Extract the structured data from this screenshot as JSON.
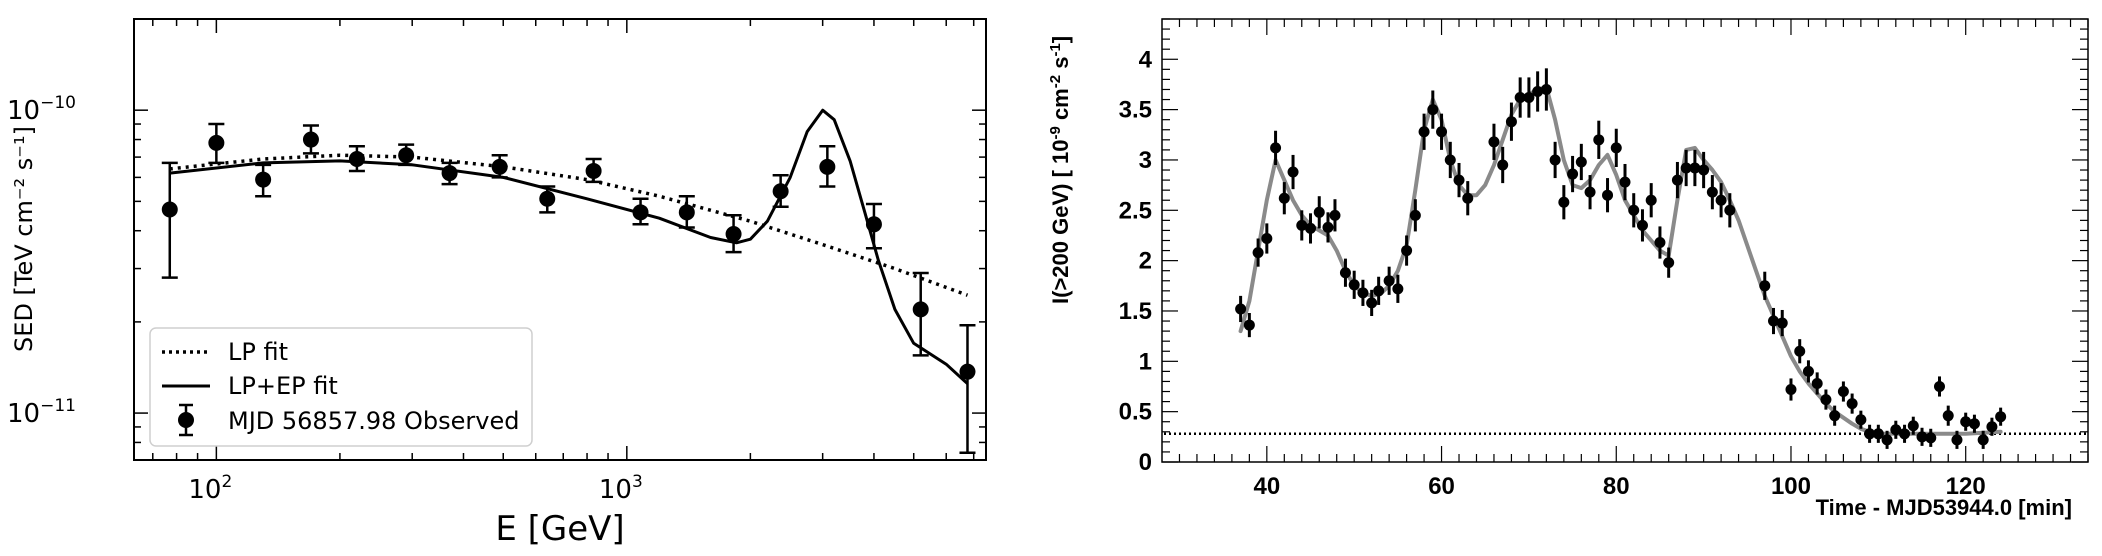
{
  "chart_data": [
    {
      "type": "scatter",
      "xscale": "log",
      "yscale": "log",
      "xlabel": "E [GeV]",
      "ylabel": "SED [TeV cm⁻² s⁻¹]",
      "xlim": [
        63,
        7500
      ],
      "ylim": [
        7e-12,
        2e-10
      ],
      "xticks": [
        {
          "value": 100,
          "base": "10",
          "exp": "2"
        },
        {
          "value": 1000,
          "base": "10",
          "exp": "3"
        }
      ],
      "yticks": [
        {
          "value": 1e-11,
          "base": "10",
          "exp": "−11"
        },
        {
          "value": 1e-10,
          "base": "10",
          "exp": "−10"
        }
      ],
      "legend_position": "lower-left",
      "series": [
        {
          "name": "MJD 56857.98 Observed",
          "kind": "errorbar",
          "points": [
            {
              "x": 77,
              "y": 4.7e-11,
              "lo": 2.8e-11,
              "hi": 6.7e-11
            },
            {
              "x": 100,
              "y": 7.8e-11,
              "lo": 6.7e-11,
              "hi": 9e-11
            },
            {
              "x": 130,
              "y": 5.9e-11,
              "lo": 5.2e-11,
              "hi": 6.6e-11
            },
            {
              "x": 170,
              "y": 8e-11,
              "lo": 7.2e-11,
              "hi": 8.9e-11
            },
            {
              "x": 220,
              "y": 6.9e-11,
              "lo": 6.3e-11,
              "hi": 7.6e-11
            },
            {
              "x": 290,
              "y": 7.1e-11,
              "lo": 6.6e-11,
              "hi": 7.7e-11
            },
            {
              "x": 370,
              "y": 6.2e-11,
              "lo": 5.7e-11,
              "hi": 6.7e-11
            },
            {
              "x": 490,
              "y": 6.5e-11,
              "lo": 6e-11,
              "hi": 7.1e-11
            },
            {
              "x": 640,
              "y": 5.1e-11,
              "lo": 4.6e-11,
              "hi": 5.6e-11
            },
            {
              "x": 830,
              "y": 6.3e-11,
              "lo": 5.8e-11,
              "hi": 6.9e-11
            },
            {
              "x": 1080,
              "y": 4.6e-11,
              "lo": 4.2e-11,
              "hi": 5.1e-11
            },
            {
              "x": 1400,
              "y": 4.6e-11,
              "lo": 4.1e-11,
              "hi": 5.2e-11
            },
            {
              "x": 1820,
              "y": 3.9e-11,
              "lo": 3.4e-11,
              "hi": 4.5e-11
            },
            {
              "x": 2370,
              "y": 5.4e-11,
              "lo": 4.8e-11,
              "hi": 6.1e-11
            },
            {
              "x": 3080,
              "y": 6.5e-11,
              "lo": 5.6e-11,
              "hi": 7.6e-11
            },
            {
              "x": 4000,
              "y": 4.2e-11,
              "lo": 3.5e-11,
              "hi": 4.9e-11
            },
            {
              "x": 5200,
              "y": 2.2e-11,
              "lo": 1.55e-11,
              "hi": 2.9e-11
            },
            {
              "x": 6760,
              "y": 1.37e-11,
              "lo": 7.4e-12,
              "hi": 1.95e-11
            }
          ]
        },
        {
          "name": "LP fit",
          "kind": "dotted-line",
          "points": [
            [
              77,
              6.4e-11
            ],
            [
              130,
              6.9e-11
            ],
            [
              200,
              7.1e-11
            ],
            [
              300,
              7e-11
            ],
            [
              500,
              6.5e-11
            ],
            [
              800,
              5.9e-11
            ],
            [
              1200,
              5.2e-11
            ],
            [
              2000,
              4.3e-11
            ],
            [
              3000,
              3.6e-11
            ],
            [
              4500,
              3e-11
            ],
            [
              6760,
              2.45e-11
            ]
          ]
        },
        {
          "name": "LP+EP fit",
          "kind": "solid-line",
          "points": [
            [
              77,
              6.2e-11
            ],
            [
              130,
              6.7e-11
            ],
            [
              200,
              6.8e-11
            ],
            [
              300,
              6.6e-11
            ],
            [
              500,
              6e-11
            ],
            [
              800,
              5.1e-11
            ],
            [
              1200,
              4.4e-11
            ],
            [
              1600,
              3.8e-11
            ],
            [
              1850,
              3.65e-11
            ],
            [
              2000,
              3.75e-11
            ],
            [
              2200,
              4.3e-11
            ],
            [
              2500,
              6e-11
            ],
            [
              2750,
              8.5e-11
            ],
            [
              3000,
              1e-10
            ],
            [
              3200,
              9.3e-11
            ],
            [
              3500,
              6.8e-11
            ],
            [
              3800,
              4.6e-11
            ],
            [
              4100,
              3.2e-11
            ],
            [
              4500,
              2.2e-11
            ],
            [
              5000,
              1.7e-11
            ],
            [
              6000,
              1.45e-11
            ],
            [
              6760,
              1.25e-11
            ]
          ]
        }
      ]
    },
    {
      "type": "scatter",
      "xlabel": "Time - MJD53944.0 [min]",
      "ylabel_main": "I(>200 GeV) [ 10",
      "ylabel_sup1": "-9",
      "ylabel_mid": " cm",
      "ylabel_sup2": "-2",
      "ylabel_mid2": " s",
      "ylabel_sup3": "-1",
      "ylabel_end": "]",
      "xlim": [
        28,
        134
      ],
      "ylim": [
        0,
        4.4
      ],
      "xticks": [
        "40",
        "60",
        "80",
        "100",
        "120"
      ],
      "yticks": [
        "0",
        "0.5",
        "1",
        "1.5",
        "2",
        "2.5",
        "3",
        "3.5",
        "4"
      ],
      "baseline": 0.28,
      "points": [
        [
          37,
          1.52,
          0.13
        ],
        [
          38,
          1.36,
          0.12
        ],
        [
          39,
          2.08,
          0.14
        ],
        [
          40,
          2.22,
          0.15
        ],
        [
          41,
          3.12,
          0.17
        ],
        [
          42,
          2.62,
          0.16
        ],
        [
          43,
          2.88,
          0.17
        ],
        [
          44,
          2.35,
          0.15
        ],
        [
          45,
          2.32,
          0.15
        ],
        [
          46,
          2.48,
          0.16
        ],
        [
          47,
          2.33,
          0.15
        ],
        [
          47.8,
          2.45,
          0.16
        ],
        [
          49,
          1.88,
          0.14
        ],
        [
          50,
          1.76,
          0.14
        ],
        [
          51,
          1.68,
          0.13
        ],
        [
          52,
          1.58,
          0.13
        ],
        [
          52.8,
          1.7,
          0.14
        ],
        [
          54,
          1.8,
          0.14
        ],
        [
          55,
          1.72,
          0.14
        ],
        [
          56,
          2.1,
          0.15
        ],
        [
          57,
          2.45,
          0.16
        ],
        [
          58,
          3.28,
          0.18
        ],
        [
          59,
          3.5,
          0.19
        ],
        [
          60,
          3.28,
          0.18
        ],
        [
          61,
          3.0,
          0.18
        ],
        [
          62,
          2.8,
          0.17
        ],
        [
          63,
          2.62,
          0.17
        ],
        [
          66,
          3.18,
          0.18
        ],
        [
          67,
          2.95,
          0.18
        ],
        [
          68,
          3.38,
          0.19
        ],
        [
          69,
          3.62,
          0.2
        ],
        [
          70,
          3.62,
          0.2
        ],
        [
          71,
          3.68,
          0.2
        ],
        [
          72,
          3.7,
          0.21
        ],
        [
          73,
          3.0,
          0.18
        ],
        [
          74,
          2.58,
          0.17
        ],
        [
          75,
          2.86,
          0.18
        ],
        [
          76,
          2.98,
          0.18
        ],
        [
          77,
          2.68,
          0.17
        ],
        [
          78,
          3.2,
          0.19
        ],
        [
          79,
          2.65,
          0.17
        ],
        [
          80,
          3.12,
          0.19
        ],
        [
          81,
          2.78,
          0.18
        ],
        [
          82,
          2.5,
          0.17
        ],
        [
          83,
          2.35,
          0.16
        ],
        [
          84,
          2.6,
          0.17
        ],
        [
          85,
          2.18,
          0.16
        ],
        [
          86,
          1.98,
          0.15
        ],
        [
          87,
          2.8,
          0.18
        ],
        [
          88,
          2.92,
          0.18
        ],
        [
          89,
          2.92,
          0.18
        ],
        [
          90,
          2.9,
          0.18
        ],
        [
          91,
          2.68,
          0.17
        ],
        [
          92,
          2.6,
          0.17
        ],
        [
          93,
          2.5,
          0.17
        ],
        [
          97,
          1.75,
          0.14
        ],
        [
          98,
          1.4,
          0.13
        ],
        [
          99,
          1.38,
          0.13
        ],
        [
          100,
          0.72,
          0.11
        ],
        [
          101,
          1.1,
          0.12
        ],
        [
          102,
          0.9,
          0.11
        ],
        [
          103,
          0.78,
          0.11
        ],
        [
          104,
          0.62,
          0.1
        ],
        [
          105,
          0.46,
          0.1
        ],
        [
          106,
          0.7,
          0.1
        ],
        [
          107,
          0.58,
          0.1
        ],
        [
          108,
          0.42,
          0.09
        ],
        [
          109,
          0.28,
          0.09
        ],
        [
          110,
          0.28,
          0.09
        ],
        [
          111,
          0.22,
          0.09
        ],
        [
          112,
          0.32,
          0.09
        ],
        [
          113,
          0.28,
          0.09
        ],
        [
          114,
          0.36,
          0.09
        ],
        [
          115,
          0.25,
          0.09
        ],
        [
          116,
          0.24,
          0.09
        ],
        [
          117,
          0.75,
          0.1
        ],
        [
          118,
          0.46,
          0.1
        ],
        [
          119,
          0.22,
          0.09
        ],
        [
          120,
          0.4,
          0.09
        ],
        [
          121,
          0.38,
          0.09
        ],
        [
          122,
          0.22,
          0.09
        ],
        [
          123,
          0.35,
          0.09
        ],
        [
          124,
          0.45,
          0.09
        ]
      ],
      "fit": [
        [
          37,
          1.3
        ],
        [
          38,
          1.6
        ],
        [
          39,
          2.1
        ],
        [
          40,
          2.6
        ],
        [
          41,
          3.0
        ],
        [
          42,
          2.8
        ],
        [
          43,
          2.6
        ],
        [
          44,
          2.45
        ],
        [
          45,
          2.35
        ],
        [
          46,
          2.3
        ],
        [
          47,
          2.25
        ],
        [
          48,
          2.1
        ],
        [
          49,
          1.9
        ],
        [
          50,
          1.75
        ],
        [
          51,
          1.68
        ],
        [
          52,
          1.65
        ],
        [
          53,
          1.67
        ],
        [
          54,
          1.75
        ],
        [
          55,
          1.9
        ],
        [
          56,
          2.15
        ],
        [
          57,
          2.7
        ],
        [
          58,
          3.3
        ],
        [
          59,
          3.6
        ],
        [
          60,
          3.4
        ],
        [
          61,
          3.0
        ],
        [
          62,
          2.75
        ],
        [
          63,
          2.65
        ],
        [
          64,
          2.65
        ],
        [
          65,
          2.75
        ],
        [
          66,
          2.95
        ],
        [
          67,
          3.2
        ],
        [
          68,
          3.45
        ],
        [
          69,
          3.6
        ],
        [
          70,
          3.65
        ],
        [
          71,
          3.7
        ],
        [
          72,
          3.72
        ],
        [
          73,
          3.4
        ],
        [
          74,
          3.0
        ],
        [
          75,
          2.75
        ],
        [
          76,
          2.72
        ],
        [
          77,
          2.8
        ],
        [
          78,
          2.95
        ],
        [
          79,
          3.05
        ],
        [
          80,
          2.85
        ],
        [
          81,
          2.6
        ],
        [
          82,
          2.45
        ],
        [
          83,
          2.3
        ],
        [
          84,
          2.2
        ],
        [
          85,
          2.1
        ],
        [
          86,
          2.05
        ],
        [
          87,
          2.6
        ],
        [
          88,
          3.1
        ],
        [
          89,
          3.12
        ],
        [
          90,
          3.0
        ],
        [
          91,
          2.9
        ],
        [
          92,
          2.78
        ],
        [
          93,
          2.6
        ],
        [
          94,
          2.4
        ],
        [
          95,
          2.15
        ],
        [
          96,
          1.9
        ],
        [
          97,
          1.65
        ],
        [
          98,
          1.45
        ],
        [
          99,
          1.25
        ],
        [
          100,
          1.05
        ],
        [
          101,
          0.9
        ],
        [
          102,
          0.78
        ],
        [
          103,
          0.68
        ],
        [
          104,
          0.58
        ],
        [
          105,
          0.5
        ],
        [
          106,
          0.44
        ],
        [
          107,
          0.38
        ],
        [
          108,
          0.33
        ],
        [
          109,
          0.3
        ],
        [
          110,
          0.28
        ],
        [
          112,
          0.28
        ],
        [
          116,
          0.28
        ],
        [
          120,
          0.28
        ],
        [
          124,
          0.3
        ]
      ]
    }
  ]
}
